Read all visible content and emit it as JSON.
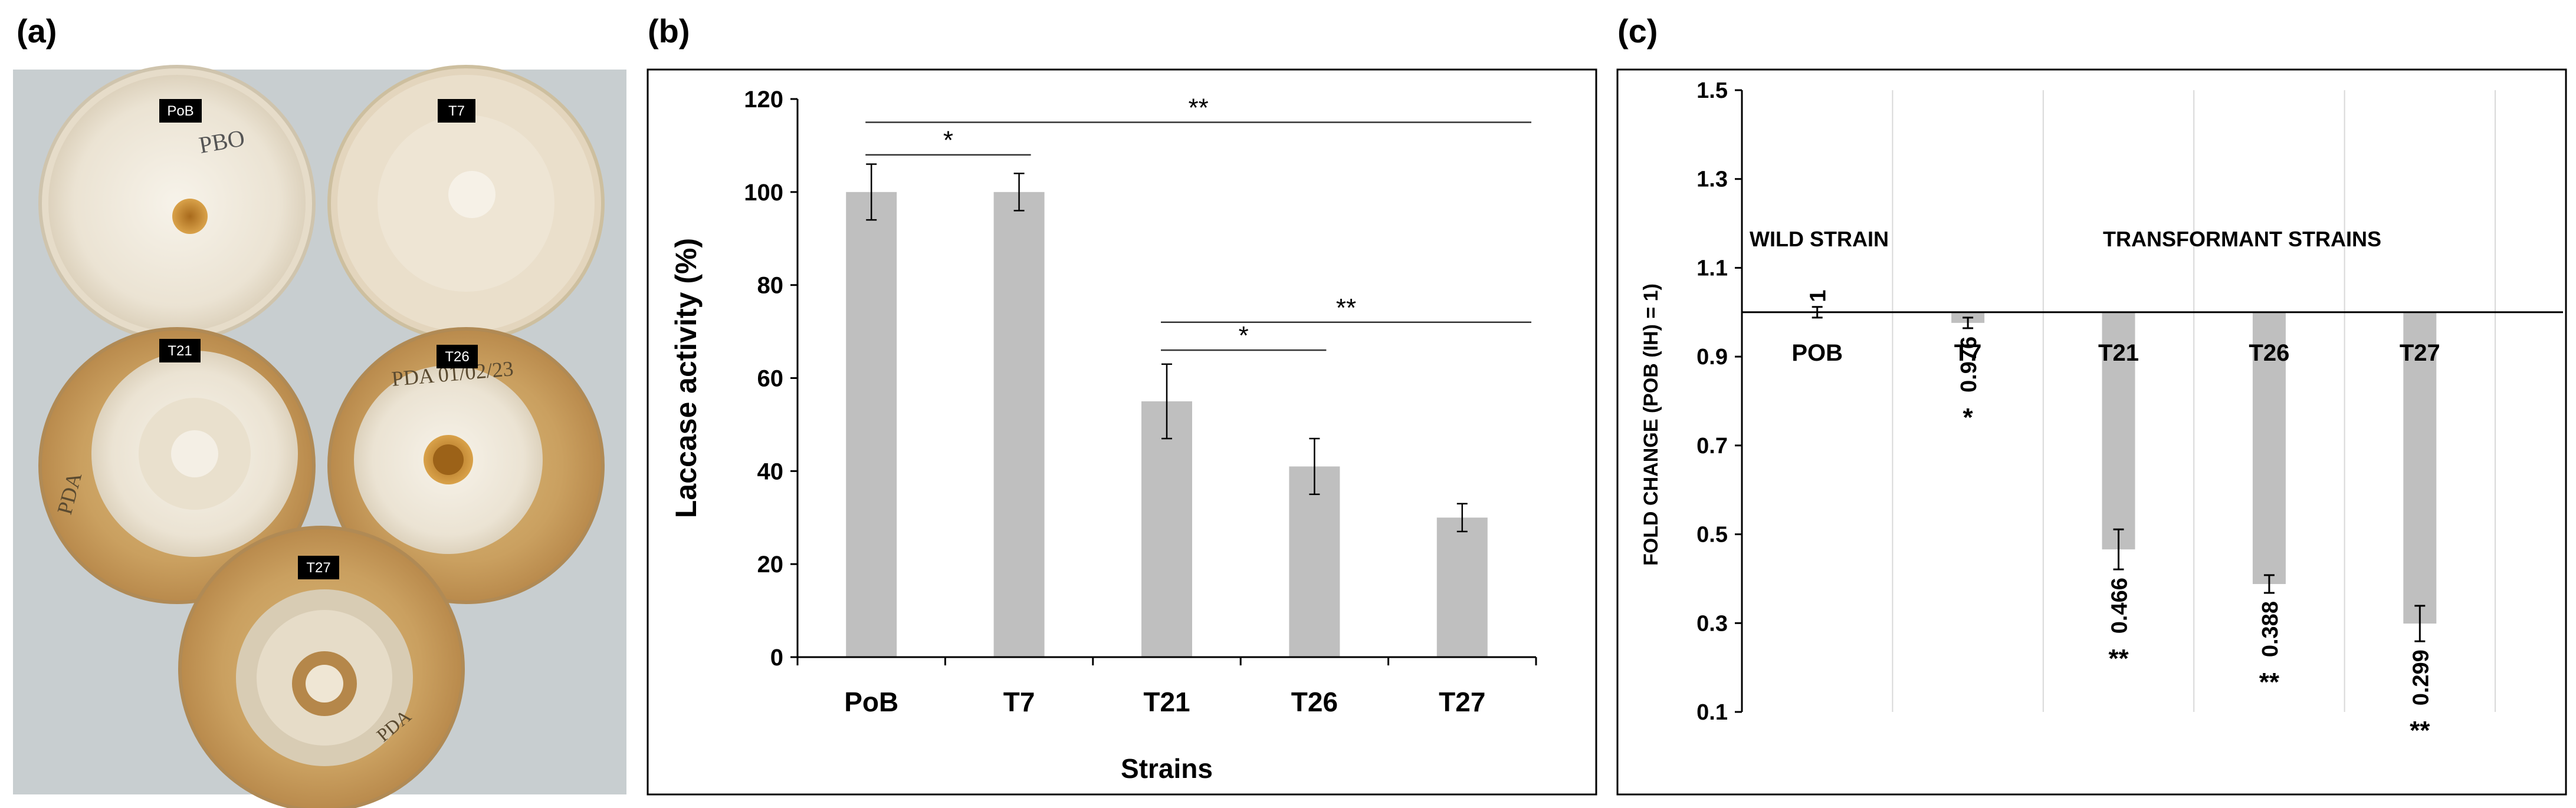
{
  "panels": {
    "a": {
      "label": "(a)"
    },
    "b": {
      "label": "(b)"
    },
    "c": {
      "label": "(c)"
    }
  },
  "photo": {
    "plates": [
      {
        "label": "PoB",
        "writing": "PBO"
      },
      {
        "label": "T7",
        "writing": ""
      },
      {
        "label": "T21",
        "writing": "PDA"
      },
      {
        "label": "T26",
        "writing": "PDA 01/02/23"
      },
      {
        "label": "T27",
        "writing": "PDA"
      }
    ]
  },
  "colors": {
    "bar": "#bfbfbf",
    "axis": "#000000",
    "grid": "#d9d9d9"
  },
  "chart_data": [
    {
      "type": "bar",
      "panel": "b",
      "categories": [
        "PoB",
        "T7",
        "T21",
        "T26",
        "T27"
      ],
      "values": [
        100,
        100,
        55,
        41,
        30
      ],
      "errors": [
        6,
        4,
        8,
        6,
        3
      ],
      "title": "",
      "xlabel": "Strains",
      "ylabel": "Laccase activity (%)",
      "ylim": [
        0,
        120
      ],
      "yticks": [
        "0",
        "20",
        "40",
        "60",
        "80",
        "100",
        "120"
      ],
      "grid": false,
      "significance": [
        {
          "from": "PoB",
          "to": "T7",
          "label": "*",
          "y": 108
        },
        {
          "from": "PoB",
          "to": "T27",
          "label": "**",
          "y": 115
        },
        {
          "from": "T21",
          "to": "T26",
          "label": "*",
          "y": 66
        },
        {
          "from": "T21",
          "to": "T27",
          "label": "**",
          "y": 72
        }
      ]
    },
    {
      "type": "bar",
      "panel": "c",
      "categories": [
        "POB",
        "T7",
        "T21",
        "T26",
        "T27"
      ],
      "values": [
        1,
        0.976,
        0.466,
        0.388,
        0.299
      ],
      "value_labels": [
        "1",
        "0.976",
        "0.466",
        "0.388",
        "0.299"
      ],
      "errors": [
        0.012,
        0.012,
        0.045,
        0.02,
        0.04
      ],
      "significance_marks": [
        "",
        "*",
        "**",
        "**",
        "**"
      ],
      "baseline": 1,
      "title": "",
      "xlabel": "",
      "ylabel": "FOLD CHANGE (POB (IH) = 1)",
      "ylim": [
        0.1,
        1.5
      ],
      "yticks": [
        "0.1",
        "0.3",
        "0.5",
        "0.7",
        "0.9",
        "1.1",
        "1.3",
        "1.5"
      ],
      "grid": true,
      "annotations": [
        "WILD STRAIN",
        "TRANSFORMANT STRAINS"
      ]
    }
  ]
}
